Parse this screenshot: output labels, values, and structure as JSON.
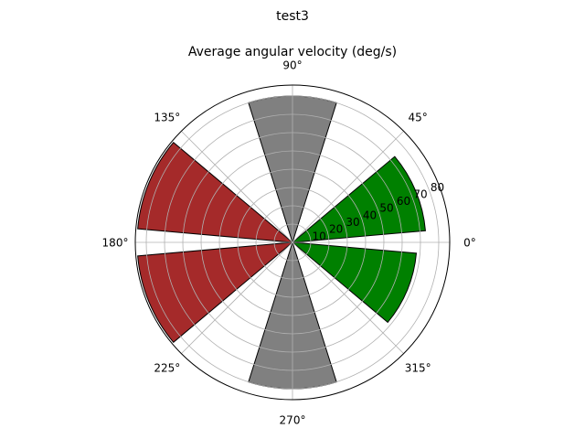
{
  "suptitle": "test3",
  "chart_data": {
    "type": "bar",
    "projection": "polar",
    "title": "Average angular velocity (deg/s)",
    "theta_unit": "deg",
    "bar_width_deg": 35,
    "r_range": [
      0,
      86
    ],
    "r_ticks": [
      10,
      20,
      30,
      40,
      50,
      60,
      70,
      80
    ],
    "r_label_angle_deg": 22.5,
    "theta_ticks": [
      {
        "angle": 0,
        "label": "0°"
      },
      {
        "angle": 45,
        "label": "45°"
      },
      {
        "angle": 90,
        "label": "90°"
      },
      {
        "angle": 135,
        "label": "135°"
      },
      {
        "angle": 180,
        "label": "180°"
      },
      {
        "angle": 225,
        "label": "225°"
      },
      {
        "angle": 270,
        "label": "270°"
      },
      {
        "angle": 315,
        "label": "315°"
      }
    ],
    "grid": true,
    "edge_color": "#000000",
    "bars": [
      {
        "theta": 22.5,
        "r": 73,
        "color": "#008000"
      },
      {
        "theta": 90,
        "r": 80,
        "color": "#808080"
      },
      {
        "theta": 157.5,
        "r": 85,
        "color": "#a52a2a"
      },
      {
        "theta": 202.5,
        "r": 85,
        "color": "#a52a2a"
      },
      {
        "theta": 270,
        "r": 80,
        "color": "#808080"
      },
      {
        "theta": 337.5,
        "r": 68,
        "color": "#008000"
      }
    ]
  }
}
